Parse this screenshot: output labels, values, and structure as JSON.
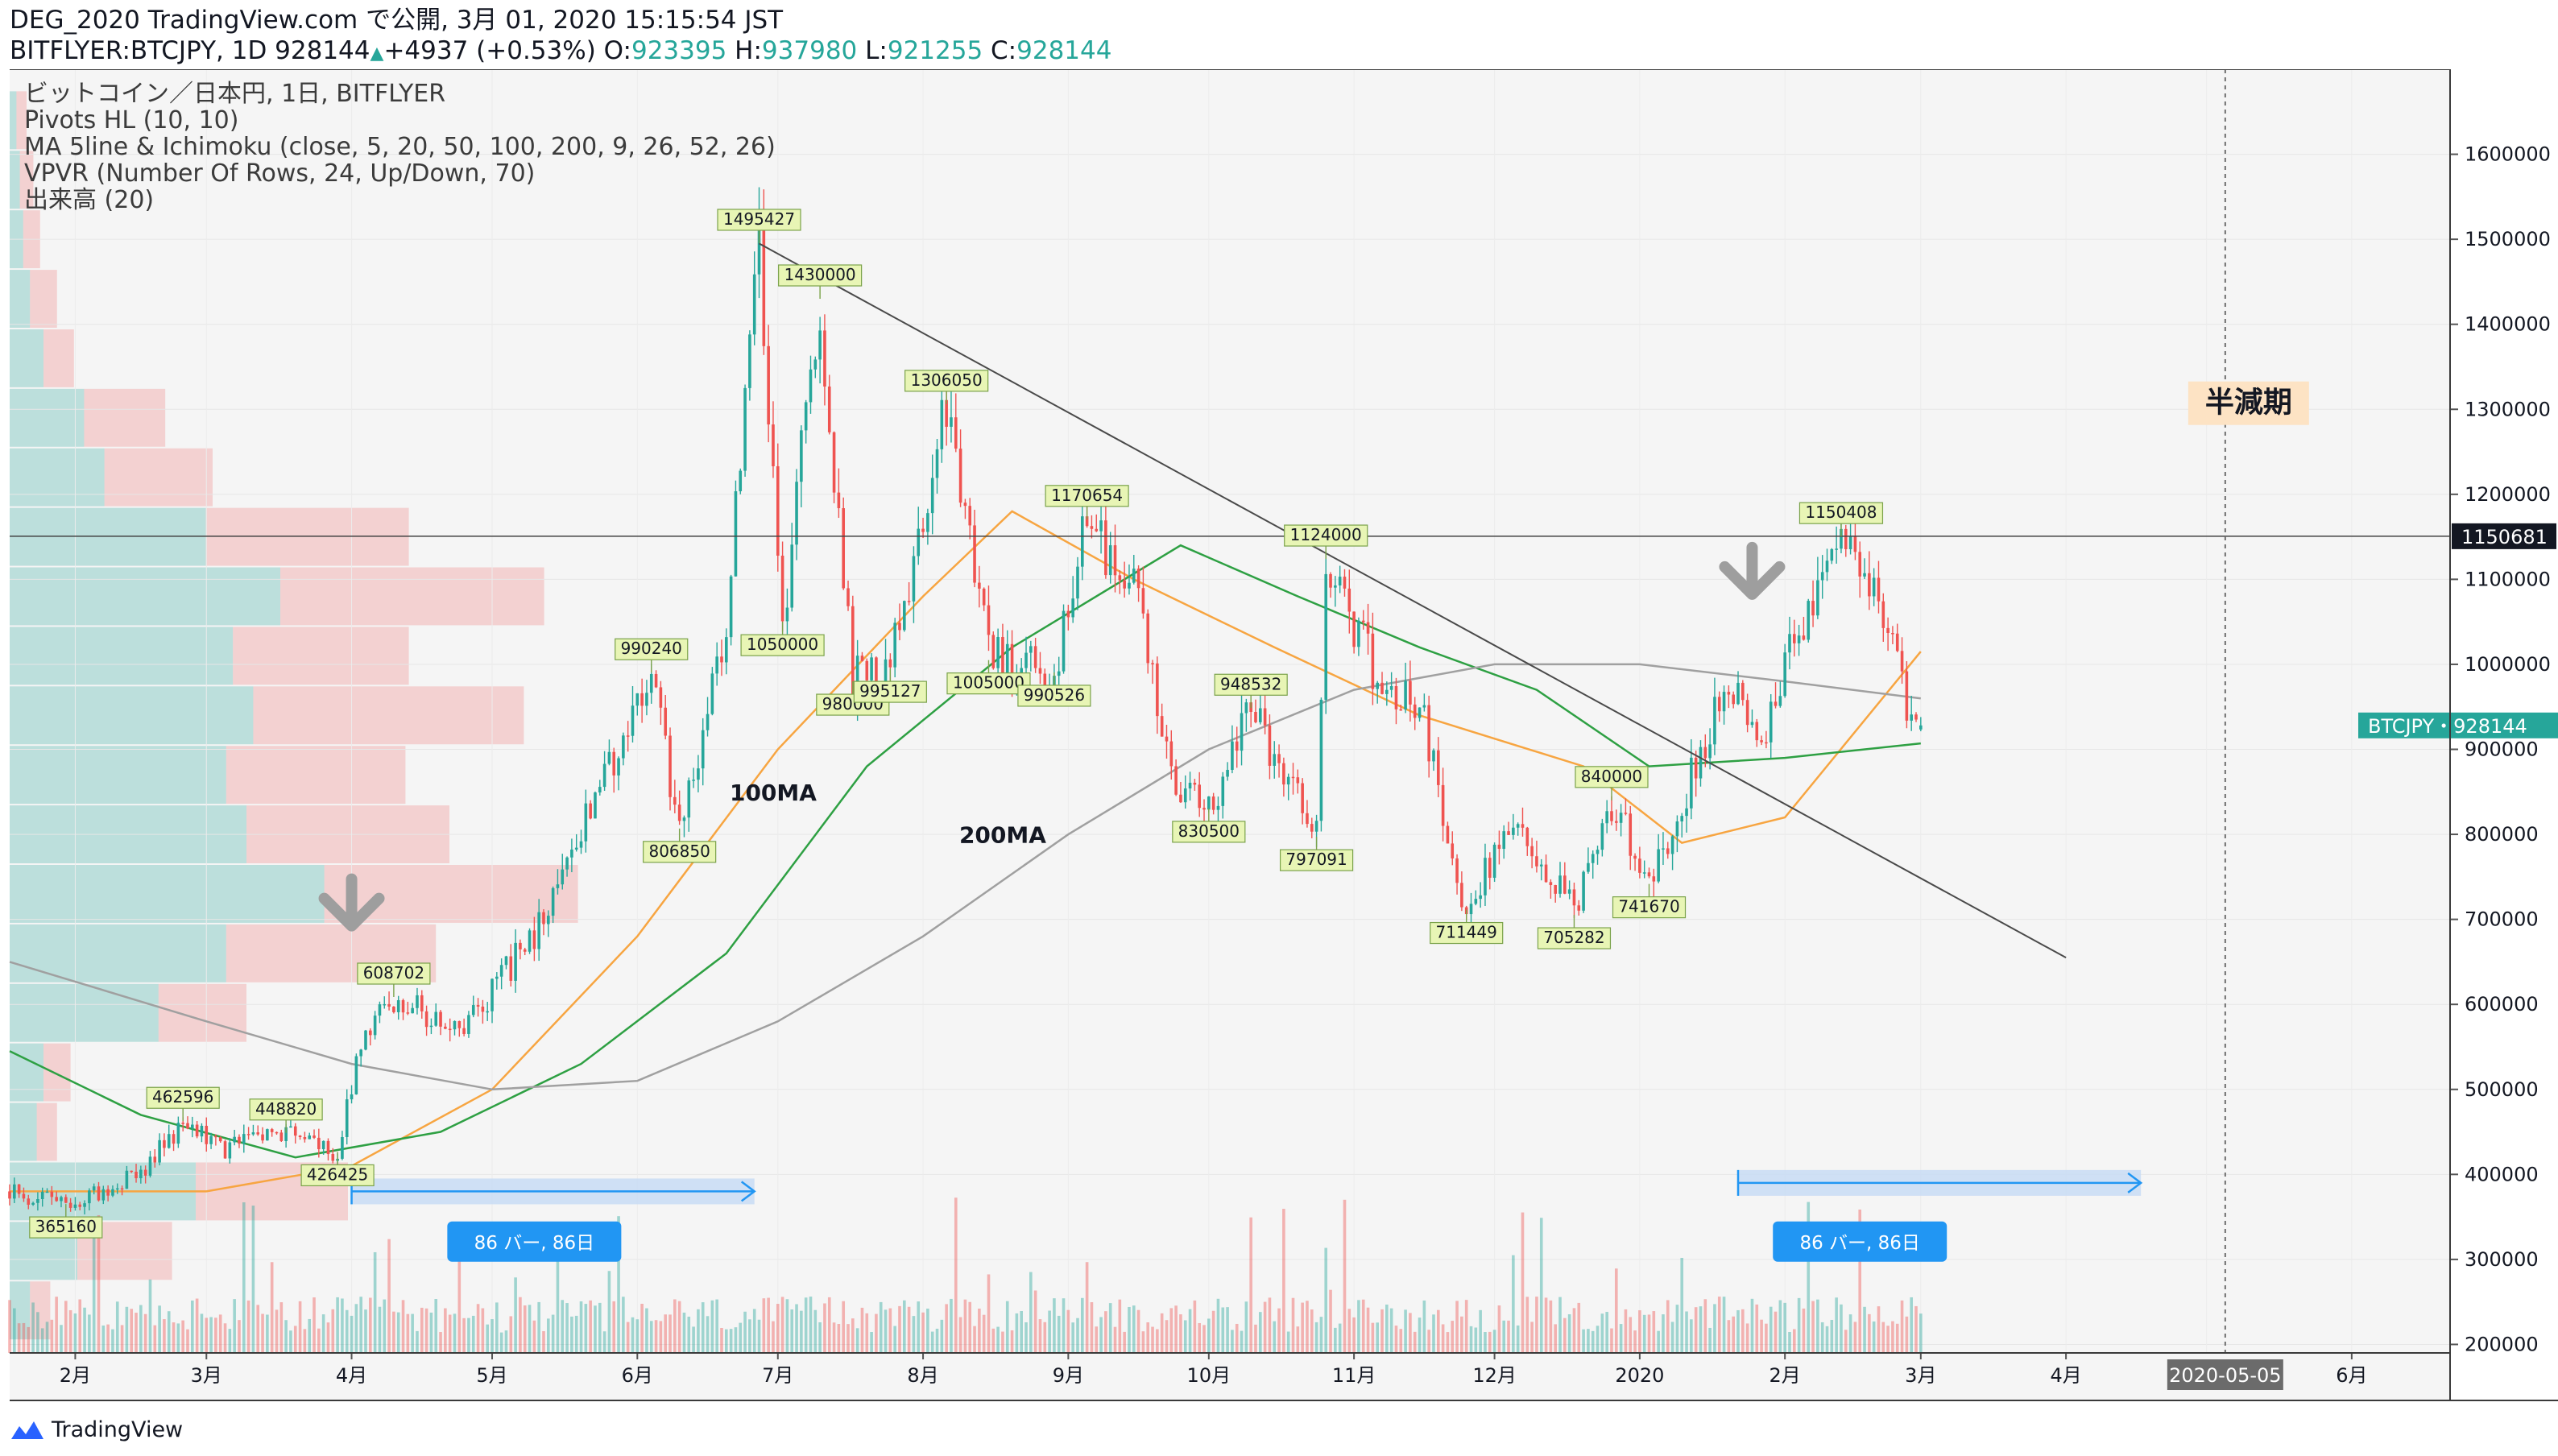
{
  "header": {
    "line1": "DEG_2020 TradingView.com で公開, 3月 01, 2020 15:15:54 JST",
    "symbol": "BITFLYER:BTCJPY, 1D 928144",
    "change_arrow": "▲",
    "change": "+4937 (+0.53%)",
    "o_label": " O:",
    "o": "923395",
    "h_label": " H:",
    "h": "937980",
    "l_label": " L:",
    "l": "921255",
    "c_label": " C:",
    "c": "928144"
  },
  "legend": [
    "ビットコイン／日本円, 1日, BITFLYER",
    "Pivots HL (10, 10)",
    "MA 5line & Ichimoku (close, 5, 20, 50, 100, 200, 9, 26, 52, 26)",
    "VPVR (Number Of Rows, 24, Up/Down, 70)",
    "出来高 (20)"
  ],
  "footer": {
    "brand": "TradingView"
  },
  "colors": {
    "up": "#26a69a",
    "down": "#ef5350",
    "ma100": "#f7a541",
    "ma50": "#2ea043",
    "ma200": "#a0a0a0",
    "accent": "#2196f3",
    "bg": "#f5f5f5"
  },
  "chart_data": {
    "type": "candlestick",
    "title": "ビットコイン／日本円, 1日, BITFLYER",
    "y_axis": {
      "ticks": [
        200000,
        300000,
        400000,
        500000,
        600000,
        700000,
        800000,
        900000,
        1000000,
        1100000,
        1200000,
        1300000,
        1400000,
        1500000,
        1600000
      ],
      "range": [
        190000,
        1700000
      ],
      "position": "right"
    },
    "x_axis": {
      "ticks": [
        "2月",
        "3月",
        "4月",
        "5月",
        "6月",
        "7月",
        "8月",
        "9月",
        "10月",
        "11月",
        "12月",
        "2020",
        "2月",
        "3月",
        "4月",
        "6月"
      ],
      "range": [
        "2019-01-18",
        "2020-06-22"
      ]
    },
    "price_anchors": [
      [
        "2019-01-18",
        380000
      ],
      [
        "2019-01-30",
        365160
      ],
      [
        "2019-02-15",
        400000
      ],
      [
        "2019-02-24",
        462596
      ],
      [
        "2019-03-05",
        430000
      ],
      [
        "2019-03-18",
        448820
      ],
      [
        "2019-03-29",
        426425
      ],
      [
        "2019-04-03",
        560000
      ],
      [
        "2019-04-10",
        608702
      ],
      [
        "2019-04-25",
        570000
      ],
      [
        "2019-05-12",
        700000
      ],
      [
        "2019-05-28",
        900000
      ],
      [
        "2019-06-04",
        990240
      ],
      [
        "2019-06-10",
        806850
      ],
      [
        "2019-06-20",
        1050000
      ],
      [
        "2019-06-27",
        1495427
      ],
      [
        "2019-07-02",
        1050000
      ],
      [
        "2019-07-10",
        1430000
      ],
      [
        "2019-07-17",
        980000
      ],
      [
        "2019-07-25",
        995127
      ],
      [
        "2019-08-06",
        1306050
      ],
      [
        "2019-08-15",
        1005000
      ],
      [
        "2019-08-29",
        990526
      ],
      [
        "2019-09-05",
        1170654
      ],
      [
        "2019-09-15",
        1090000
      ],
      [
        "2019-09-24",
        860000
      ],
      [
        "2019-10-01",
        830500
      ],
      [
        "2019-10-10",
        948532
      ],
      [
        "2019-10-24",
        797091
      ],
      [
        "2019-10-26",
        1124000
      ],
      [
        "2019-11-05",
        1000000
      ],
      [
        "2019-11-15",
        950000
      ],
      [
        "2019-11-25",
        711449
      ],
      [
        "2019-12-05",
        820000
      ],
      [
        "2019-12-18",
        705282
      ],
      [
        "2019-12-26",
        840000
      ],
      [
        "2020-01-03",
        741670
      ],
      [
        "2020-01-20",
        980000
      ],
      [
        "2020-01-27",
        920000
      ],
      [
        "2020-02-02",
        1010000
      ],
      [
        "2020-02-13",
        1150408
      ],
      [
        "2020-02-20",
        1080000
      ],
      [
        "2020-02-29",
        923000
      ],
      [
        "2020-03-01",
        928144
      ]
    ],
    "pivots": [
      {
        "date": "2019-01-30",
        "value": 365160,
        "label": "365160",
        "kind": "low"
      },
      {
        "date": "2019-02-24",
        "value": 462596,
        "label": "462596",
        "kind": "high"
      },
      {
        "date": "2019-03-18",
        "value": 448820,
        "label": "448820",
        "kind": "high"
      },
      {
        "date": "2019-03-29",
        "value": 426425,
        "label": "426425",
        "kind": "low"
      },
      {
        "date": "2019-04-10",
        "value": 608702,
        "label": "608702",
        "kind": "high"
      },
      {
        "date": "2019-06-04",
        "value": 990240,
        "label": "990240",
        "kind": "high"
      },
      {
        "date": "2019-06-10",
        "value": 806850,
        "label": "806850",
        "kind": "low"
      },
      {
        "date": "2019-06-27",
        "value": 1495427,
        "label": "1495427",
        "kind": "high"
      },
      {
        "date": "2019-07-02",
        "value": 1050000,
        "label": "1050000",
        "kind": "low"
      },
      {
        "date": "2019-07-10",
        "value": 1430000,
        "label": "1430000",
        "kind": "high"
      },
      {
        "date": "2019-07-17",
        "value": 980000,
        "label": "980000",
        "kind": "low"
      },
      {
        "date": "2019-07-25",
        "value": 995127,
        "label": "995127",
        "kind": "low"
      },
      {
        "date": "2019-08-06",
        "value": 1306050,
        "label": "1306050",
        "kind": "high"
      },
      {
        "date": "2019-08-15",
        "value": 1005000,
        "label": "1005000",
        "kind": "low"
      },
      {
        "date": "2019-08-29",
        "value": 990526,
        "label": "990526",
        "kind": "low"
      },
      {
        "date": "2019-09-05",
        "value": 1170654,
        "label": "1170654",
        "kind": "high"
      },
      {
        "date": "2019-10-01",
        "value": 830500,
        "label": "830500",
        "kind": "low"
      },
      {
        "date": "2019-10-10",
        "value": 948532,
        "label": "948532",
        "kind": "high"
      },
      {
        "date": "2019-10-24",
        "value": 797091,
        "label": "797091",
        "kind": "low"
      },
      {
        "date": "2019-10-26",
        "value": 1124000,
        "label": "1124000",
        "kind": "high"
      },
      {
        "date": "2019-11-25",
        "value": 711449,
        "label": "711449",
        "kind": "low"
      },
      {
        "date": "2019-12-18",
        "value": 705282,
        "label": "705282",
        "kind": "low"
      },
      {
        "date": "2019-12-26",
        "value": 840000,
        "label": "840000",
        "kind": "high"
      },
      {
        "date": "2020-01-03",
        "value": 741670,
        "label": "741670",
        "kind": "low"
      },
      {
        "date": "2020-02-13",
        "value": 1150408,
        "label": "1150408",
        "kind": "high"
      }
    ],
    "moving_averages": [
      {
        "name": "100MA",
        "color": "#f7a541",
        "points": [
          [
            "2019-01-18",
            380000
          ],
          [
            "2019-03-01",
            380000
          ],
          [
            "2019-04-01",
            410000
          ],
          [
            "2019-05-01",
            500000
          ],
          [
            "2019-06-01",
            680000
          ],
          [
            "2019-07-01",
            900000
          ],
          [
            "2019-08-01",
            1080000
          ],
          [
            "2019-08-20",
            1180000
          ],
          [
            "2019-09-15",
            1100000
          ],
          [
            "2019-10-15",
            1020000
          ],
          [
            "2019-11-15",
            940000
          ],
          [
            "2019-12-20",
            880000
          ],
          [
            "2020-01-10",
            790000
          ],
          [
            "2020-02-01",
            820000
          ],
          [
            "2020-03-01",
            1015000
          ]
        ]
      },
      {
        "name": "50MA",
        "color": "#2ea043",
        "points": [
          [
            "2019-01-18",
            545000
          ],
          [
            "2019-02-15",
            470000
          ],
          [
            "2019-03-20",
            420000
          ],
          [
            "2019-04-20",
            450000
          ],
          [
            "2019-05-20",
            530000
          ],
          [
            "2019-06-20",
            660000
          ],
          [
            "2019-07-20",
            880000
          ],
          [
            "2019-08-20",
            1020000
          ],
          [
            "2019-09-25",
            1140000
          ],
          [
            "2019-10-20",
            1080000
          ],
          [
            "2019-11-15",
            1020000
          ],
          [
            "2019-12-10",
            970000
          ],
          [
            "2020-01-03",
            880000
          ],
          [
            "2020-02-01",
            890000
          ],
          [
            "2020-03-01",
            907000
          ]
        ]
      },
      {
        "name": "200MA",
        "color": "#a0a0a0",
        "points": [
          [
            "2019-01-18",
            650000
          ],
          [
            "2019-03-01",
            580000
          ],
          [
            "2019-04-01",
            530000
          ],
          [
            "2019-05-01",
            500000
          ],
          [
            "2019-06-01",
            510000
          ],
          [
            "2019-07-01",
            580000
          ],
          [
            "2019-08-01",
            680000
          ],
          [
            "2019-09-01",
            800000
          ],
          [
            "2019-10-01",
            900000
          ],
          [
            "2019-11-01",
            970000
          ],
          [
            "2019-12-01",
            1000000
          ],
          [
            "2020-01-01",
            1000000
          ],
          [
            "2020-02-01",
            980000
          ],
          [
            "2020-03-01",
            960000
          ]
        ]
      }
    ],
    "trendline": {
      "from": [
        "2019-06-27",
        1495000
      ],
      "to": [
        "2020-04-01",
        655000
      ]
    },
    "horizontal_line": {
      "value": 1150681,
      "label": "1150681"
    },
    "current_price": {
      "value": 928144,
      "label": "BTCJPY・928144"
    },
    "halving": {
      "date": "2020-05-05",
      "label": "2020-05-05",
      "text": "半減期"
    },
    "annotations": [
      {
        "text": "100MA",
        "date": "2019-06-30",
        "value": 840000
      },
      {
        "text": "200MA",
        "date": "2019-08-18",
        "value": 790000
      },
      {
        "text": "86 バー, 86日",
        "date": "2019-05-10",
        "value": 320000
      },
      {
        "text": "86 バー, 86日",
        "date": "2020-02-17",
        "value": 320000
      }
    ],
    "ranges": [
      {
        "from": "2019-04-01",
        "to": "2019-06-26",
        "value": 380000
      },
      {
        "from": "2020-01-22",
        "to": "2020-04-17",
        "value": 390000
      }
    ],
    "arrows": [
      {
        "date": "2019-04-01",
        "value": 700000,
        "direction": "down"
      },
      {
        "date": "2020-01-25",
        "value": 1090000,
        "direction": "down"
      }
    ],
    "volume_profile": [
      {
        "price": 1640000,
        "up": 2,
        "down": 3
      },
      {
        "price": 1570000,
        "up": 3,
        "down": 4
      },
      {
        "price": 1500000,
        "up": 4,
        "down": 5
      },
      {
        "price": 1430000,
        "up": 6,
        "down": 8
      },
      {
        "price": 1360000,
        "up": 10,
        "down": 9
      },
      {
        "price": 1290000,
        "up": 22,
        "down": 24
      },
      {
        "price": 1220000,
        "up": 28,
        "down": 32
      },
      {
        "price": 1150000,
        "up": 58,
        "down": 60
      },
      {
        "price": 1080000,
        "up": 80,
        "down": 78
      },
      {
        "price": 1010000,
        "up": 66,
        "down": 52
      },
      {
        "price": 940000,
        "up": 72,
        "down": 80
      },
      {
        "price": 870000,
        "up": 64,
        "down": 53
      },
      {
        "price": 800000,
        "up": 70,
        "down": 60
      },
      {
        "price": 730000,
        "up": 93,
        "down": 75
      },
      {
        "price": 660000,
        "up": 64,
        "down": 62
      },
      {
        "price": 590000,
        "up": 44,
        "down": 26
      },
      {
        "price": 520000,
        "up": 10,
        "down": 8
      },
      {
        "price": 450000,
        "up": 8,
        "down": 6
      },
      {
        "price": 380000,
        "up": 55,
        "down": 45
      },
      {
        "price": 310000,
        "up": 20,
        "down": 28
      },
      {
        "price": 240000,
        "up": 6,
        "down": 6
      }
    ]
  }
}
